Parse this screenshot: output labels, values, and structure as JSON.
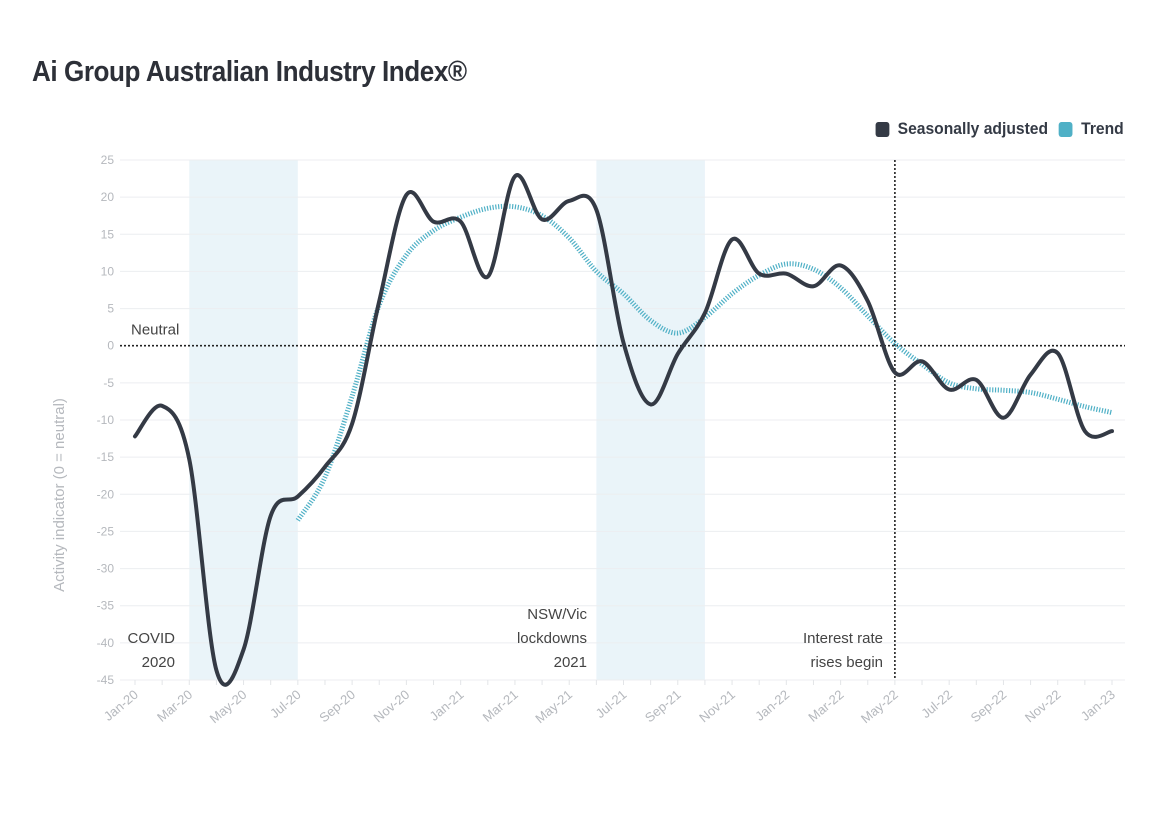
{
  "title": "Ai Group Australian Industry Index®",
  "chart_data": {
    "type": "line",
    "ylabel": "Activity indicator (0 = neutral)",
    "xlabel": "",
    "ylim": [
      -45,
      25
    ],
    "yticks": [
      25,
      20,
      15,
      10,
      5,
      0,
      -5,
      -10,
      -15,
      -20,
      -25,
      -30,
      -35,
      -40,
      -45
    ],
    "grid": true,
    "legend_placement": "top-right",
    "x": [
      "Jan-20",
      "Feb-20",
      "Mar-20",
      "Apr-20",
      "May-20",
      "Jun-20",
      "Jul-20",
      "Aug-20",
      "Sep-20",
      "Oct-20",
      "Nov-20",
      "Dec-20",
      "Jan-21",
      "Feb-21",
      "Mar-21",
      "Apr-21",
      "May-21",
      "Jun-21",
      "Jul-21",
      "Aug-21",
      "Sep-21",
      "Oct-21",
      "Nov-21",
      "Dec-21",
      "Jan-22",
      "Feb-22",
      "Mar-22",
      "Apr-22",
      "May-22",
      "Jun-22",
      "Jul-22",
      "Aug-22",
      "Sep-22",
      "Oct-22",
      "Nov-22",
      "Dec-22",
      "Jan-23"
    ],
    "xtick_labels": [
      "Jan-20",
      "Mar-20",
      "May-20",
      "Jul-20",
      "Sep-20",
      "Nov-20",
      "Jan-21",
      "Mar-21",
      "May-21",
      "Jul-21",
      "Sep-21",
      "Nov-21",
      "Jan-22",
      "Mar-22",
      "May-22",
      "Jul-22",
      "Sep-22",
      "Nov-22",
      "Jan-23"
    ],
    "series": [
      {
        "name": "Seasonally adjusted",
        "color": "#343a45",
        "values": [
          -12.2,
          -8.1,
          -15.3,
          -43.7,
          -40.9,
          -22.9,
          -20.3,
          -16.3,
          -10.5,
          6,
          20.3,
          16.7,
          16.7,
          9.3,
          22.8,
          17,
          19.5,
          18.3,
          0.4,
          -7.9,
          -1.1,
          4.4,
          14.3,
          9.7,
          9.7,
          8,
          10.8,
          6,
          -3.6,
          -2.1,
          -5.9,
          -4.6,
          -9.7,
          -3.9,
          -1,
          -11.5,
          -11.5
        ]
      },
      {
        "name": "Trend",
        "color": "#4fb0c6",
        "values": [
          null,
          null,
          null,
          null,
          null,
          null,
          -23.5,
          -17.7,
          -6.8,
          5.5,
          12.2,
          15.5,
          17.3,
          18.5,
          18.7,
          17.5,
          14.5,
          10,
          7,
          3.4,
          1.7,
          3.8,
          7,
          9.5,
          11,
          10.3,
          7.8,
          4,
          0.3,
          -2.5,
          -5,
          -5.8,
          -6,
          -6.3,
          -7.2,
          -8.2,
          -9
        ]
      }
    ],
    "shaded_periods": [
      {
        "from": "Mar-20",
        "to": "Jul-20",
        "label": "COVID 2020",
        "label_lines": [
          "COVID",
          "2020"
        ]
      },
      {
        "from": "Jun-21",
        "to": "Oct-21",
        "label": "NSW/Vic lockdowns 2021",
        "label_lines": [
          "NSW/Vic",
          "lockdowns",
          "2021"
        ]
      }
    ],
    "annotations": {
      "neutral": {
        "y": 0,
        "label": "Neutral"
      },
      "rate_rises": {
        "x": "May-22",
        "label_lines": [
          "Interest rate",
          "rises begin"
        ]
      }
    },
    "shade_color": "#eaf4f9"
  }
}
